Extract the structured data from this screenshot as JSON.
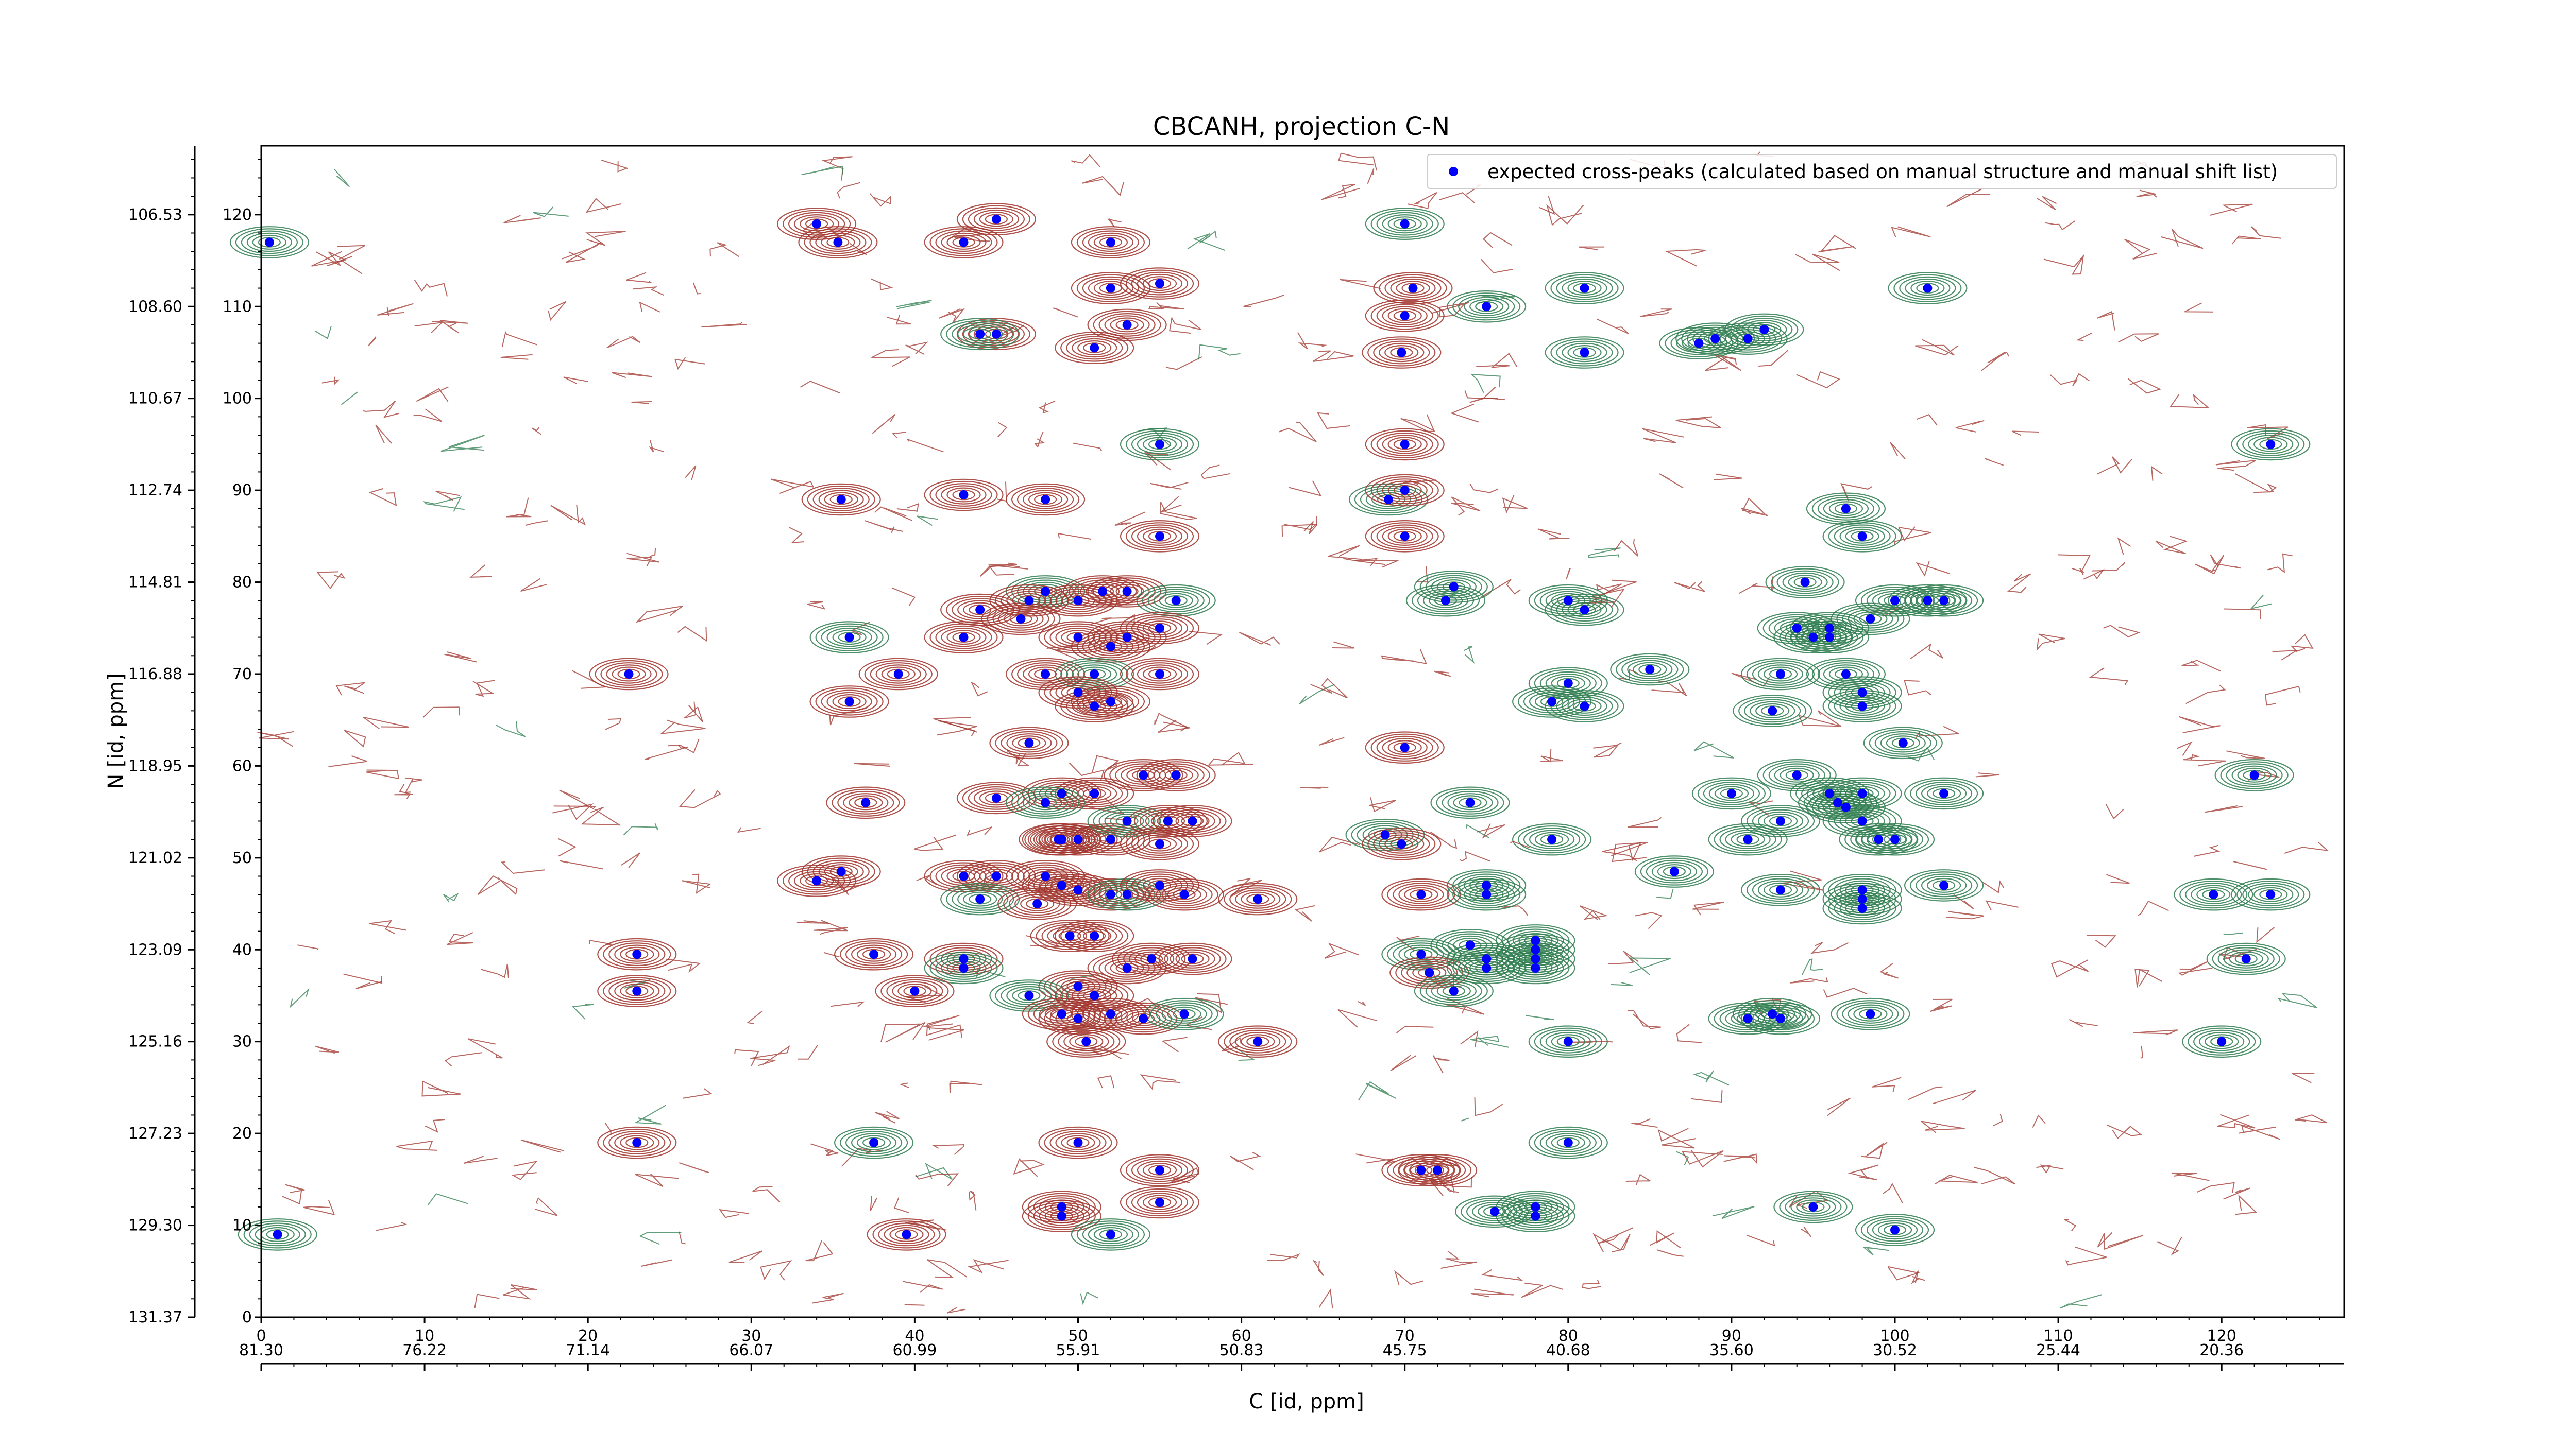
{
  "chart_data": {
    "type": "scatter",
    "title": "CBCANH, projection C-N",
    "xlabel": "C [id, ppm]",
    "ylabel": "N [id, ppm]",
    "x_index_ticks": [
      "0",
      "10",
      "20",
      "30",
      "40",
      "50",
      "60",
      "70",
      "80",
      "90",
      "100",
      "110",
      "120"
    ],
    "x_ppm_ticks": [
      "81.30",
      "76.22",
      "71.14",
      "66.07",
      "60.99",
      "55.91",
      "50.83",
      "45.75",
      "40.68",
      "35.60",
      "30.52",
      "25.44",
      "20.36"
    ],
    "y_index_ticks": [
      "0",
      "10",
      "20",
      "30",
      "40",
      "50",
      "60",
      "70",
      "80",
      "90",
      "100",
      "110",
      "120"
    ],
    "y_ppm_ticks": [
      "131.37",
      "129.30",
      "127.23",
      "125.16",
      "123.09",
      "121.02",
      "118.95",
      "116.88",
      "114.81",
      "112.74",
      "110.67",
      "108.60",
      "106.53"
    ],
    "xlim": [
      0,
      127.5
    ],
    "ylim": [
      0,
      127.5
    ],
    "legend": {
      "label": "expected cross-peaks (calculated based on manual structure and manual shift list)",
      "placement": "top-right"
    },
    "colors": {
      "positive_contour": "#2e7d4f",
      "negative_contour": "#a0342c",
      "peak_marker": "#0000ff"
    },
    "series": [
      {
        "name": "expected cross-peaks (calculated based on manual structure and manual shift list)",
        "points": [
          [
            0.5,
            117
          ],
          [
            34,
            119
          ],
          [
            35.3,
            117
          ],
          [
            45,
            119.5
          ],
          [
            52,
            117
          ],
          [
            43,
            117
          ],
          [
            70,
            119
          ],
          [
            52,
            112
          ],
          [
            55,
            112.5
          ],
          [
            75,
            110
          ],
          [
            70.5,
            112
          ],
          [
            45,
            107
          ],
          [
            44,
            107
          ],
          [
            53,
            108
          ],
          [
            51,
            105.5
          ],
          [
            70,
            109
          ],
          [
            69.8,
            105
          ],
          [
            81,
            112
          ],
          [
            81,
            105
          ],
          [
            89,
            106.5
          ],
          [
            88,
            106
          ],
          [
            91,
            106.5
          ],
          [
            92,
            107.5
          ],
          [
            102,
            112
          ],
          [
            55,
            95
          ],
          [
            70,
            95
          ],
          [
            123,
            95
          ],
          [
            35.5,
            89
          ],
          [
            43,
            89.5
          ],
          [
            48,
            89
          ],
          [
            69,
            89
          ],
          [
            70,
            90
          ],
          [
            70,
            85
          ],
          [
            55,
            85
          ],
          [
            97,
            88
          ],
          [
            98,
            85
          ],
          [
            48,
            79
          ],
          [
            44,
            77
          ],
          [
            47,
            78
          ],
          [
            50,
            78
          ],
          [
            51.5,
            79
          ],
          [
            53,
            79
          ],
          [
            56,
            78
          ],
          [
            55,
            75
          ],
          [
            53,
            74
          ],
          [
            50,
            74
          ],
          [
            52,
            73
          ],
          [
            43,
            74
          ],
          [
            36,
            74
          ],
          [
            46.5,
            76
          ],
          [
            73,
            79.5
          ],
          [
            72.5,
            78
          ],
          [
            80,
            78
          ],
          [
            81,
            77
          ],
          [
            94.5,
            80
          ],
          [
            94,
            75
          ],
          [
            96,
            75
          ],
          [
            96,
            74
          ],
          [
            95,
            74
          ],
          [
            98.5,
            76
          ],
          [
            100,
            78
          ],
          [
            102,
            78
          ],
          [
            103,
            78
          ],
          [
            22.5,
            70
          ],
          [
            39,
            70
          ],
          [
            48,
            70
          ],
          [
            51,
            70
          ],
          [
            55,
            70
          ],
          [
            50,
            68
          ],
          [
            51,
            66.5
          ],
          [
            52,
            67
          ],
          [
            36,
            67
          ],
          [
            85,
            70.5
          ],
          [
            80,
            69
          ],
          [
            79,
            67
          ],
          [
            81,
            66.5
          ],
          [
            93,
            70
          ],
          [
            97,
            70
          ],
          [
            98,
            68
          ],
          [
            98,
            66.5
          ],
          [
            92.5,
            66
          ],
          [
            47,
            62.5
          ],
          [
            70,
            62
          ],
          [
            100.5,
            62.5
          ],
          [
            122,
            59
          ],
          [
            54,
            59
          ],
          [
            51,
            57
          ],
          [
            56,
            59
          ],
          [
            49,
            57
          ],
          [
            45,
            56.5
          ],
          [
            48,
            56
          ],
          [
            37,
            56
          ],
          [
            74,
            56
          ],
          [
            94,
            59
          ],
          [
            90,
            57
          ],
          [
            96,
            57
          ],
          [
            96.5,
            56
          ],
          [
            97,
            55.5
          ],
          [
            98,
            57
          ],
          [
            103,
            57
          ],
          [
            50,
            52
          ],
          [
            52,
            52
          ],
          [
            53,
            54
          ],
          [
            55.5,
            54
          ],
          [
            57,
            54
          ],
          [
            55,
            51.5
          ],
          [
            49,
            52
          ],
          [
            48.8,
            52
          ],
          [
            68.8,
            52.5
          ],
          [
            69.8,
            51.5
          ],
          [
            79,
            52
          ],
          [
            93,
            54
          ],
          [
            91,
            52
          ],
          [
            98,
            54
          ],
          [
            99,
            52
          ],
          [
            100,
            52
          ],
          [
            35.5,
            48.5
          ],
          [
            34,
            47.5
          ],
          [
            43,
            48
          ],
          [
            45,
            48
          ],
          [
            44,
            45.5
          ],
          [
            48,
            48
          ],
          [
            47.5,
            45
          ],
          [
            50,
            46.5
          ],
          [
            52,
            46
          ],
          [
            49,
            47
          ],
          [
            53,
            46
          ],
          [
            55,
            47
          ],
          [
            56.5,
            46
          ],
          [
            61,
            45.5
          ],
          [
            71,
            46
          ],
          [
            75,
            47
          ],
          [
            75,
            46
          ],
          [
            86.5,
            48.5
          ],
          [
            93,
            46.5
          ],
          [
            98,
            46.5
          ],
          [
            98,
            45.5
          ],
          [
            98,
            44.5
          ],
          [
            103,
            47
          ],
          [
            119.5,
            46
          ],
          [
            123,
            46
          ],
          [
            23,
            39.5
          ],
          [
            37.5,
            39.5
          ],
          [
            43,
            39
          ],
          [
            43,
            38
          ],
          [
            49.5,
            41.5
          ],
          [
            51,
            41.5
          ],
          [
            53,
            38
          ],
          [
            54.5,
            39
          ],
          [
            57,
            39
          ],
          [
            71,
            39.5
          ],
          [
            71.5,
            37.5
          ],
          [
            74,
            40.5
          ],
          [
            75,
            39
          ],
          [
            75,
            38
          ],
          [
            78,
            38
          ],
          [
            78,
            39
          ],
          [
            78,
            41
          ],
          [
            78,
            40
          ],
          [
            23,
            35.5
          ],
          [
            40,
            35.5
          ],
          [
            50,
            36
          ],
          [
            47,
            35
          ],
          [
            51,
            35
          ],
          [
            49,
            33
          ],
          [
            50,
            32.5
          ],
          [
            52,
            33
          ],
          [
            54,
            32.5
          ],
          [
            56.5,
            33
          ],
          [
            50.5,
            30
          ],
          [
            61,
            30
          ],
          [
            73,
            35.5
          ],
          [
            80,
            30
          ],
          [
            91,
            32.5
          ],
          [
            92.5,
            33
          ],
          [
            93,
            32.5
          ],
          [
            98.5,
            33
          ],
          [
            120,
            30
          ],
          [
            121.5,
            39
          ],
          [
            23,
            19
          ],
          [
            37.5,
            19
          ],
          [
            50,
            19
          ],
          [
            80,
            19
          ],
          [
            49,
            12
          ],
          [
            49,
            11
          ],
          [
            55,
            12.5
          ],
          [
            52,
            9
          ],
          [
            55,
            16
          ],
          [
            39.5,
            9
          ],
          [
            71,
            16
          ],
          [
            72,
            16
          ],
          [
            75.5,
            11.5
          ],
          [
            78,
            12
          ],
          [
            78,
            11
          ],
          [
            95,
            12
          ],
          [
            100,
            9.5
          ],
          [
            1,
            9
          ]
        ]
      }
    ]
  }
}
